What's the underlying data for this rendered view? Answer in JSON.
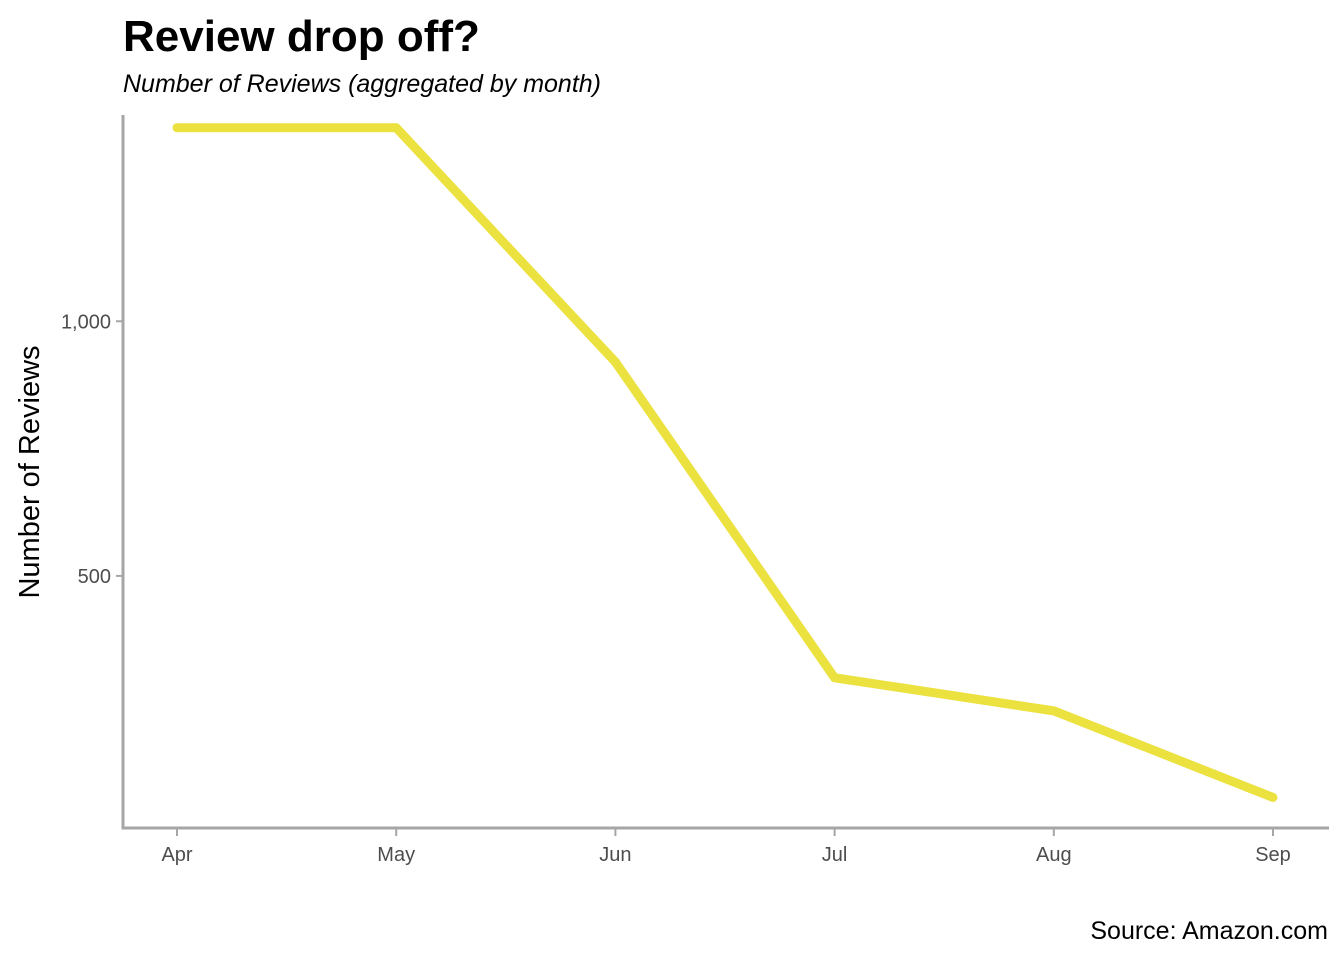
{
  "chart_data": {
    "type": "line",
    "title": "Review drop off?",
    "subtitle": "Number of Reviews (aggregated by month)",
    "xlabel": "",
    "ylabel": "Number of Reviews",
    "caption": "Source: Amazon.com",
    "categories": [
      "Apr",
      "May",
      "Jun",
      "Jul",
      "Aug",
      "Sep"
    ],
    "values": [
      1380,
      1380,
      920,
      300,
      235,
      65
    ],
    "ylim": [
      5,
      1405
    ],
    "yticks": [
      500,
      1000
    ],
    "ytick_labels": [
      "500",
      "1,000"
    ],
    "grid": false,
    "line_color": "#EBE13F",
    "axis_color": "#A6A6A6"
  }
}
